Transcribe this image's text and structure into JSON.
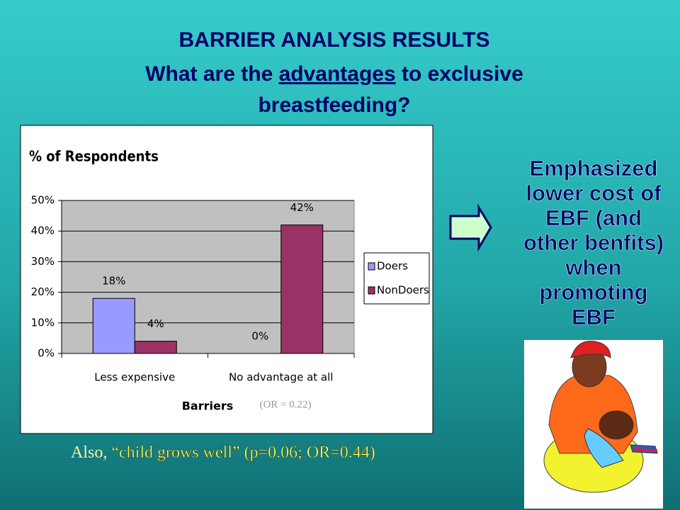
{
  "title": {
    "line1": "BARRIER ANALYSIS RESULTS",
    "line2": [
      "What are the ",
      "advantages",
      " to exclusive"
    ],
    "line3": "breastfeeding?"
  },
  "chart_data": {
    "type": "bar",
    "title": "% of Respondents",
    "x_label": "Barriers",
    "annotation": "(OR = 0.22)",
    "categories": [
      "Less expensive",
      "No advantage at all"
    ],
    "series": [
      {
        "name": "Doers",
        "color": "#9999ff",
        "values": [
          18,
          0
        ],
        "value_labels": [
          "18%",
          "0%"
        ]
      },
      {
        "name": "NonDoers",
        "color": "#993366",
        "values": [
          4,
          42
        ],
        "value_labels": [
          "4%",
          "42%"
        ]
      }
    ],
    "ylim": [
      0,
      50
    ],
    "yticks": [
      {
        "value": 0,
        "label": "0%"
      },
      {
        "value": 10,
        "label": "10%"
      },
      {
        "value": 20,
        "label": "20%"
      },
      {
        "value": 30,
        "label": "30%"
      },
      {
        "value": 40,
        "label": "40%"
      },
      {
        "value": 50,
        "label": "50%"
      }
    ],
    "grid": true,
    "legend": "right"
  },
  "footnote": [
    "Also, ",
    "“child grows well” (p=0.06; OR=0.44)"
  ],
  "side_text": [
    "Emphasized",
    "lower cost of",
    "EBF (and",
    "other benfits)",
    "when",
    "promoting",
    "EBF"
  ]
}
